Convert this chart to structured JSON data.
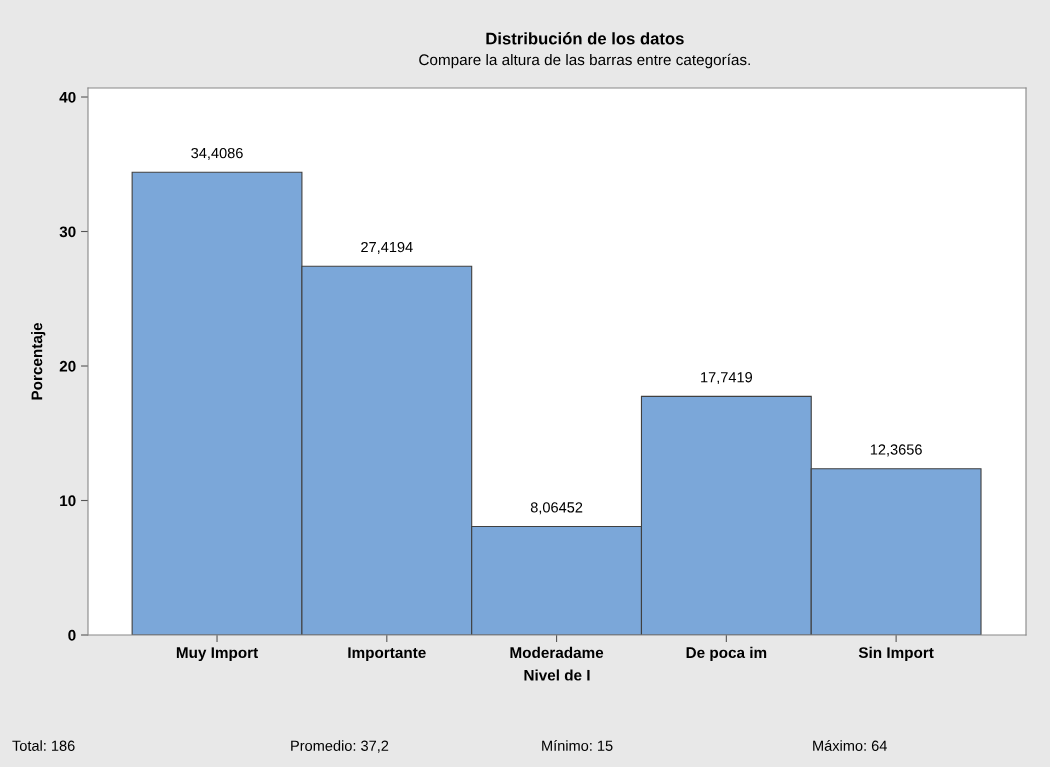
{
  "chart_data": {
    "type": "bar",
    "title": "Distribución de los datos",
    "subtitle": "Compare la altura de las barras entre categorías.",
    "xlabel": "Nivel de I",
    "ylabel": "Porcentaje",
    "categories": [
      "Muy Import",
      "Importante",
      "Moderadame",
      "De poca im",
      "Sin Import"
    ],
    "values": [
      34.4086,
      27.4194,
      8.06452,
      17.7419,
      12.3656
    ],
    "value_labels": [
      "34,4086",
      "27,4194",
      "8,06452",
      "17,7419",
      "12,3656"
    ],
    "color": "#7ba7d9",
    "ylim": [
      0,
      40.67
    ],
    "yticks": [
      0,
      10,
      20,
      30,
      40
    ],
    "grid": false,
    "annotations": [
      "Total: 186",
      "Promedio: 37,2",
      "Mínimo: 15",
      "Máximo: 64"
    ]
  }
}
